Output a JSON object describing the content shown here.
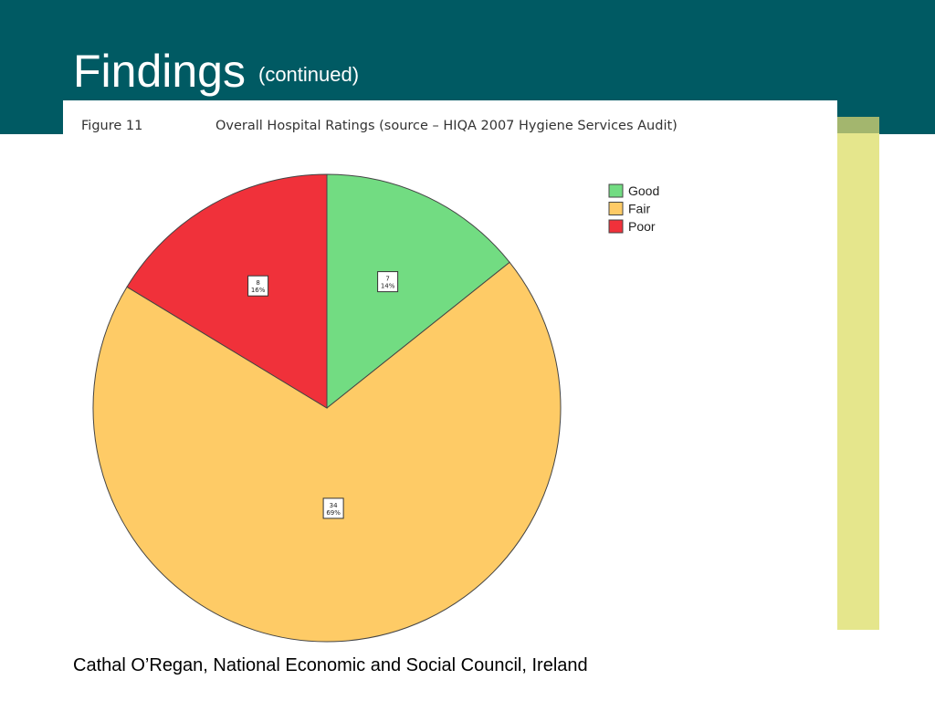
{
  "slide": {
    "title": "Findings",
    "subtitle": "(continued)",
    "footer": "Cathal O’Regan, National Economic and Social Council, Ireland"
  },
  "figure": {
    "number": "Figure 11",
    "caption": "Overall Hospital Ratings (source – HIQA 2007 Hygiene Services Audit)"
  },
  "colors": {
    "header": "#005a63",
    "accent_bar": "#e5e68c",
    "accent_olive": "#a3b66e"
  },
  "chart_data": {
    "type": "pie",
    "title": "Overall Hospital Ratings (source – HIQA 2007 Hygiene Services Audit)",
    "legend_position": "top-right",
    "slices": [
      {
        "name": "Good",
        "value": 7,
        "percent": "14%",
        "color": "#72dc82"
      },
      {
        "name": "Fair",
        "value": 34,
        "percent": "69%",
        "color": "#fecb66"
      },
      {
        "name": "Poor",
        "value": 8,
        "percent": "16%",
        "color": "#f0313a"
      }
    ]
  }
}
